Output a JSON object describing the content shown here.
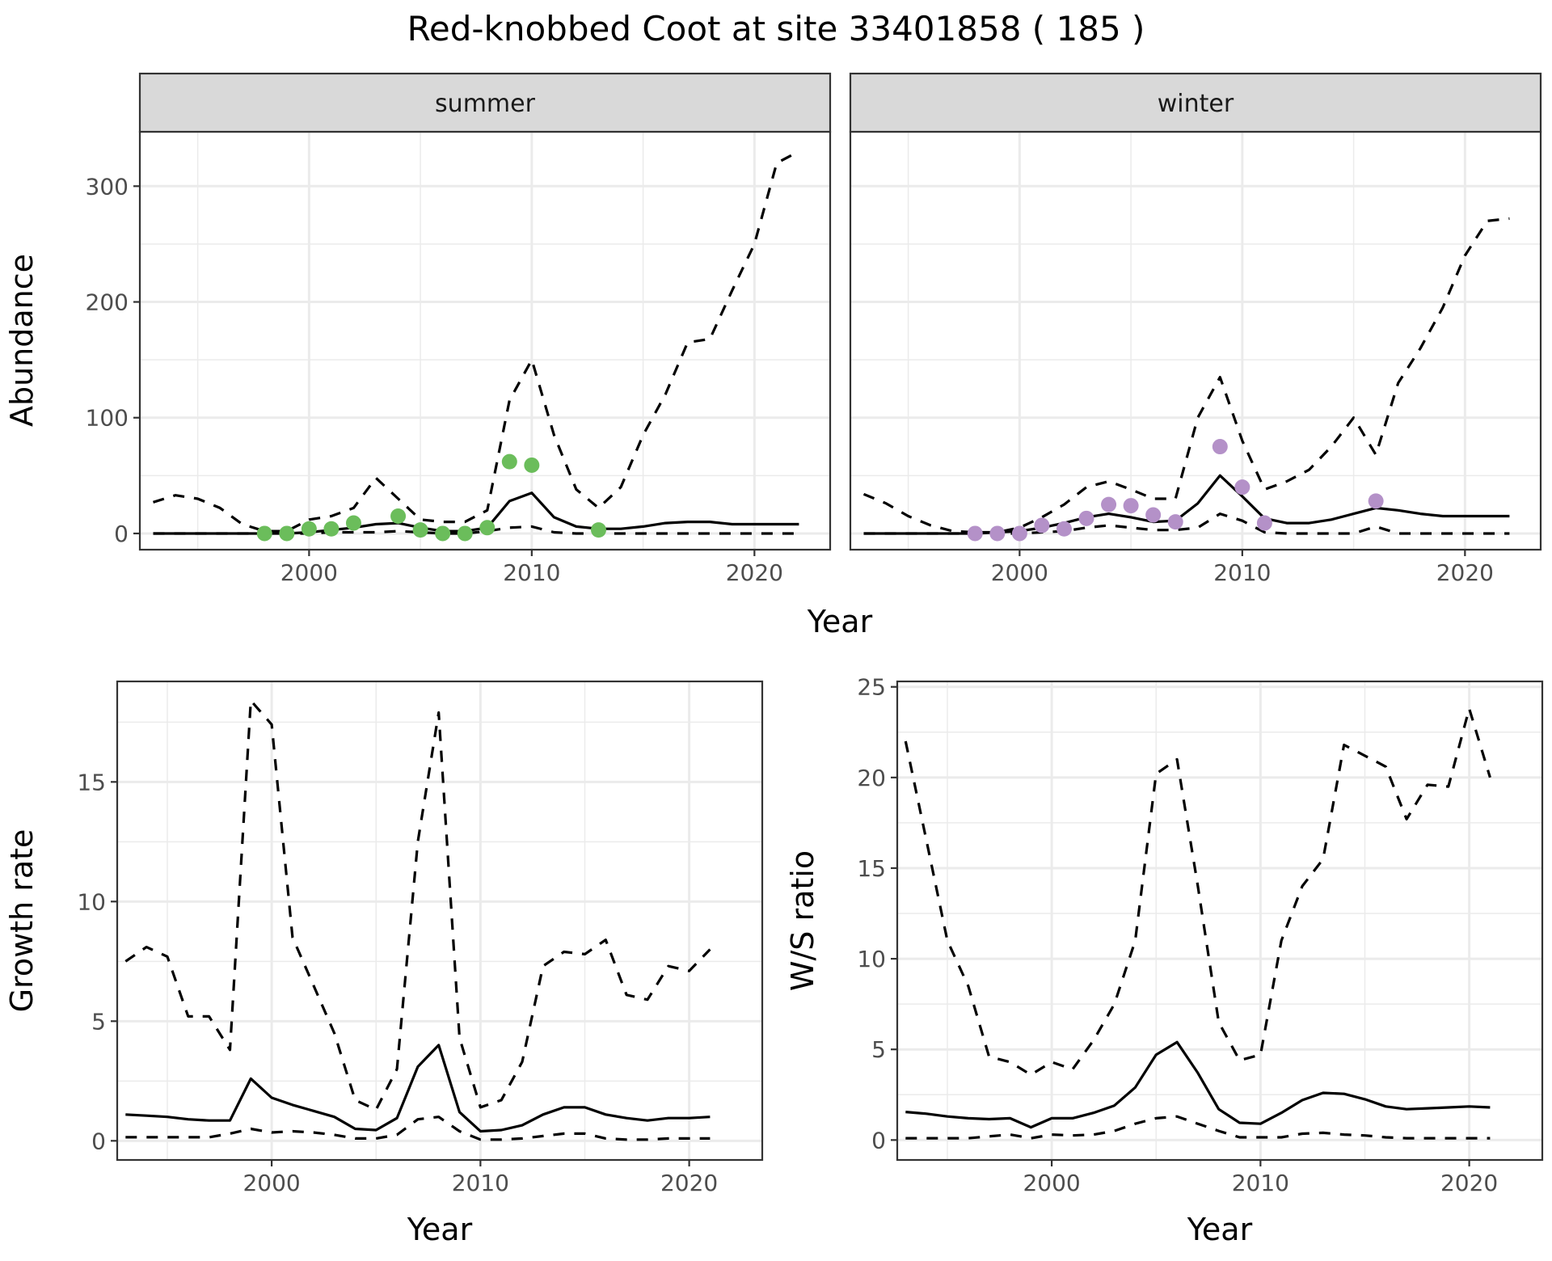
{
  "figure": {
    "title": "Red-knobbed Coot at site 33401858 ( 185 )"
  },
  "chart_data": [
    {
      "id": "abundance",
      "type": "line",
      "facet_var": "season",
      "ylabel": "Abundance",
      "xlabel": "Year",
      "xlim": [
        1992.4,
        2023.4
      ],
      "ylim": [
        -14,
        347
      ],
      "xticks": [
        2000,
        2010,
        2020
      ],
      "yticks": [
        0,
        100,
        200,
        300
      ],
      "grid": true,
      "legend": "none",
      "facets": [
        {
          "label": "summer",
          "point_color": "#6bbd5b",
          "x": [
            1993,
            1994,
            1995,
            1996,
            1997,
            1998,
            1999,
            2000,
            2001,
            2002,
            2003,
            2004,
            2005,
            2006,
            2007,
            2008,
            2009,
            2010,
            2011,
            2012,
            2013,
            2014,
            2015,
            2016,
            2017,
            2018,
            2019,
            2020,
            2021,
            2022
          ],
          "series": [
            {
              "name": "estimate",
              "style": "solid",
              "values": [
                0,
                0,
                0,
                0,
                0,
                0,
                0,
                1,
                3,
                5,
                8,
                9,
                5,
                2,
                2,
                5,
                28,
                35,
                14,
                6,
                4,
                4,
                6,
                9,
                10,
                10,
                8,
                8,
                8,
                8
              ]
            },
            {
              "name": "lower",
              "style": "dashed",
              "values": [
                0,
                0,
                0,
                0,
                0,
                0,
                0,
                0,
                1,
                1,
                1,
                2,
                1,
                0,
                0,
                2,
                5,
                6,
                1,
                0,
                0,
                0,
                0,
                0,
                0,
                0,
                0,
                0,
                0,
                0
              ]
            },
            {
              "name": "upper",
              "style": "dashed",
              "values": [
                27,
                33,
                30,
                22,
                8,
                2,
                2,
                12,
                15,
                22,
                48,
                30,
                12,
                10,
                10,
                20,
                115,
                150,
                85,
                38,
                22,
                40,
                85,
                120,
                165,
                168,
                210,
                250,
                320,
                330
              ]
            }
          ],
          "observed": {
            "x": [
              1998,
              1999,
              2000,
              2001,
              2002,
              2004,
              2005,
              2006,
              2007,
              2008,
              2009,
              2010,
              2013
            ],
            "y": [
              0,
              0,
              4,
              4,
              9,
              15,
              3,
              0,
              0,
              5,
              62,
              59,
              3
            ]
          }
        },
        {
          "label": "winter",
          "point_color": "#b491c8",
          "x": [
            1993,
            1994,
            1995,
            1996,
            1997,
            1998,
            1999,
            2000,
            2001,
            2002,
            2003,
            2004,
            2005,
            2006,
            2007,
            2008,
            2009,
            2010,
            2011,
            2012,
            2013,
            2014,
            2015,
            2016,
            2017,
            2018,
            2019,
            2020,
            2021,
            2022
          ],
          "series": [
            {
              "name": "estimate",
              "style": "solid",
              "values": [
                0,
                0,
                0,
                0,
                0,
                0,
                1,
                2,
                5,
                9,
                14,
                17,
                14,
                10,
                11,
                26,
                50,
                32,
                13,
                9,
                9,
                12,
                17,
                22,
                20,
                17,
                15,
                15,
                15,
                15
              ]
            },
            {
              "name": "lower",
              "style": "dashed",
              "values": [
                0,
                0,
                0,
                0,
                0,
                0,
                0,
                0,
                1,
                2,
                5,
                7,
                5,
                3,
                3,
                5,
                17,
                11,
                1,
                0,
                0,
                0,
                0,
                6,
                0,
                0,
                0,
                0,
                0,
                0
              ]
            },
            {
              "name": "upper",
              "style": "dashed",
              "values": [
                34,
                26,
                15,
                7,
                2,
                1,
                1,
                5,
                14,
                25,
                40,
                45,
                38,
                30,
                30,
                100,
                135,
                80,
                38,
                45,
                55,
                75,
                100,
                68,
                130,
                160,
                195,
                240,
                270,
                272
              ]
            }
          ],
          "observed": {
            "x": [
              1998,
              1999,
              2000,
              2001,
              2002,
              2003,
              2004,
              2005,
              2006,
              2007,
              2009,
              2010,
              2011,
              2016
            ],
            "y": [
              0,
              0,
              0,
              7,
              4,
              13,
              25,
              24,
              16,
              10,
              75,
              40,
              9,
              28
            ]
          }
        }
      ]
    },
    {
      "id": "growth-rate",
      "type": "line",
      "ylabel": "Growth rate",
      "xlabel": "Year",
      "xlim": [
        1992.6,
        2023.5
      ],
      "ylim": [
        -0.8,
        19.2
      ],
      "xticks": [
        2000,
        2010,
        2020
      ],
      "yticks": [
        0,
        5,
        10,
        15
      ],
      "grid": true,
      "legend": "none",
      "x": [
        1993,
        1994,
        1995,
        1996,
        1997,
        1998,
        1999,
        2000,
        2001,
        2002,
        2003,
        2004,
        2005,
        2006,
        2007,
        2008,
        2009,
        2010,
        2011,
        2012,
        2013,
        2014,
        2015,
        2016,
        2017,
        2018,
        2019,
        2020,
        2021
      ],
      "series": [
        {
          "name": "estimate",
          "style": "solid",
          "values": [
            1.1,
            1.05,
            1.0,
            0.9,
            0.85,
            0.85,
            2.6,
            1.8,
            1.5,
            1.25,
            1.0,
            0.5,
            0.45,
            0.95,
            3.1,
            4.0,
            1.2,
            0.4,
            0.45,
            0.65,
            1.1,
            1.4,
            1.4,
            1.1,
            0.95,
            0.85,
            0.95,
            0.95,
            1.0
          ]
        },
        {
          "name": "lower",
          "style": "dashed",
          "values": [
            0.15,
            0.15,
            0.15,
            0.15,
            0.15,
            0.3,
            0.5,
            0.35,
            0.4,
            0.35,
            0.25,
            0.1,
            0.1,
            0.25,
            0.9,
            1.0,
            0.4,
            0.05,
            0.05,
            0.1,
            0.2,
            0.3,
            0.3,
            0.1,
            0.05,
            0.05,
            0.1,
            0.1,
            0.1
          ]
        },
        {
          "name": "upper",
          "style": "dashed",
          "values": [
            7.5,
            8.1,
            7.7,
            5.2,
            5.2,
            3.8,
            18.4,
            17.4,
            8.5,
            6.5,
            4.5,
            1.7,
            1.3,
            3.0,
            12.5,
            17.9,
            4.3,
            1.4,
            1.7,
            3.3,
            7.3,
            7.9,
            7.8,
            8.4,
            6.1,
            5.9,
            7.3,
            7.1,
            8.0
          ]
        }
      ]
    },
    {
      "id": "ws-ratio",
      "type": "line",
      "ylabel": "W/S ratio",
      "xlabel": "Year",
      "xlim": [
        1992.6,
        2023.5
      ],
      "ylim": [
        -1.1,
        25.3
      ],
      "xticks": [
        2000,
        2010,
        2020
      ],
      "yticks": [
        0,
        5,
        10,
        15,
        20,
        25
      ],
      "grid": true,
      "legend": "none",
      "x": [
        1993,
        1994,
        1995,
        1996,
        1997,
        1998,
        1999,
        2000,
        2001,
        2002,
        2003,
        2004,
        2005,
        2006,
        2007,
        2008,
        2009,
        2010,
        2011,
        2012,
        2013,
        2014,
        2015,
        2016,
        2017,
        2018,
        2019,
        2020,
        2021
      ],
      "series": [
        {
          "name": "estimate",
          "style": "solid",
          "values": [
            1.55,
            1.45,
            1.3,
            1.2,
            1.15,
            1.2,
            0.7,
            1.2,
            1.2,
            1.5,
            1.9,
            2.9,
            4.7,
            5.4,
            3.7,
            1.7,
            0.95,
            0.9,
            1.5,
            2.2,
            2.6,
            2.55,
            2.25,
            1.85,
            1.7,
            1.75,
            1.8,
            1.85,
            1.8
          ]
        },
        {
          "name": "lower",
          "style": "dashed",
          "values": [
            0.1,
            0.1,
            0.1,
            0.1,
            0.2,
            0.3,
            0.1,
            0.3,
            0.25,
            0.3,
            0.5,
            0.9,
            1.2,
            1.3,
            0.9,
            0.5,
            0.15,
            0.15,
            0.15,
            0.35,
            0.4,
            0.3,
            0.25,
            0.15,
            0.1,
            0.1,
            0.1,
            0.1,
            0.1
          ]
        },
        {
          "name": "upper",
          "style": "dashed",
          "values": [
            22.0,
            16.5,
            11.0,
            8.5,
            4.6,
            4.3,
            3.6,
            4.3,
            3.9,
            5.5,
            7.5,
            11.0,
            20.2,
            21.0,
            14.0,
            6.5,
            4.4,
            4.7,
            11.0,
            14.0,
            15.5,
            21.8,
            21.2,
            20.6,
            17.7,
            19.6,
            19.5,
            23.8,
            20.0
          ]
        }
      ]
    }
  ]
}
